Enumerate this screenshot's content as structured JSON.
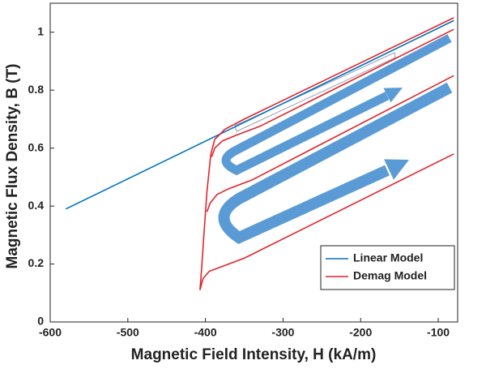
{
  "chart_data": {
    "type": "line",
    "x_label": "Magnetic Field Intensity, H (kA/m)",
    "y_label": "Magnetic Flux Density, B (T)",
    "xlim": [
      -600,
      -75
    ],
    "ylim": [
      0,
      1.1
    ],
    "xticks": [
      -600,
      -500,
      -400,
      -300,
      -200,
      -100
    ],
    "yticks": [
      0,
      0.2,
      0.4,
      0.6,
      0.8,
      1
    ],
    "legend": "lower right",
    "series": [
      {
        "name": "Linear Model",
        "color": "#0072bd",
        "x": [
          -580,
          -80
        ],
        "values": [
          0.39,
          1.04
        ]
      },
      {
        "name": "Demag Model",
        "color": "#e0242a",
        "x": [
          -80,
          -350,
          -375,
          -388,
          -393,
          -398,
          -402,
          -405,
          -407,
          null,
          -407,
          -403,
          -395,
          -380,
          -350,
          -80,
          null,
          -398,
          -394,
          -385,
          -370,
          -340,
          -80,
          null,
          -392,
          -388,
          -378,
          -360,
          -330,
          -80
        ],
        "values": [
          1.05,
          0.7,
          0.665,
          0.63,
          0.58,
          0.45,
          0.3,
          0.18,
          0.11,
          null,
          0.11,
          0.15,
          0.175,
          0.19,
          0.22,
          0.58,
          null,
          0.38,
          0.41,
          0.44,
          0.46,
          0.49,
          0.85,
          null,
          0.57,
          0.6,
          0.625,
          0.645,
          0.675,
          1.01
        ]
      }
    ]
  }
}
